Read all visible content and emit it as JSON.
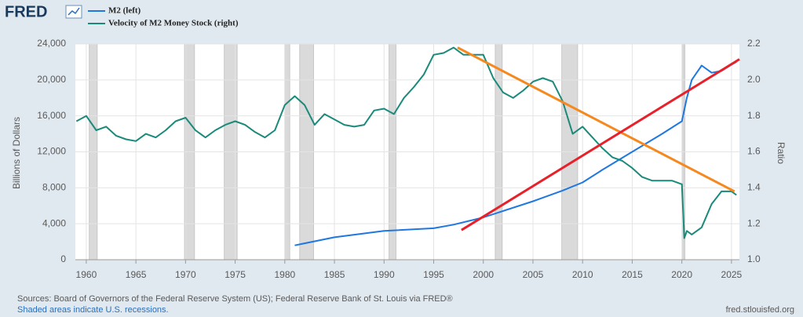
{
  "logo": "FRED",
  "chart_data": {
    "type": "line",
    "y_label": "Billions of Dollars",
    "y2_label": "Ratio",
    "xlim": [
      1958.9,
      2025.8
    ],
    "xticks": [
      1960,
      1965,
      1970,
      1975,
      1980,
      1985,
      1990,
      1995,
      2000,
      2005,
      2010,
      2015,
      2020,
      2025
    ],
    "ylim": [
      0,
      24000
    ],
    "yticks": [
      0,
      {
        "value": 4000,
        "label": "4,000"
      },
      {
        "value": 8000,
        "label": "8,000"
      },
      {
        "value": 12000,
        "label": "12,000"
      },
      {
        "value": 16000,
        "label": "16,000"
      },
      {
        "value": 20000,
        "label": "20,000"
      },
      {
        "value": 24000,
        "label": "24,000"
      }
    ],
    "y2lim": [
      1.0,
      2.2
    ],
    "y2ticks": [
      {
        "value": 1.0,
        "label": "1.0"
      },
      1.2,
      1.4,
      1.6,
      1.8,
      {
        "value": 2.0,
        "label": "2.0"
      },
      2.2
    ],
    "grid": true,
    "recessions": [
      [
        1960.3,
        1961.1
      ],
      [
        1969.9,
        1970.9
      ],
      [
        1973.9,
        1975.2
      ],
      [
        1980.0,
        1980.5
      ],
      [
        1981.5,
        1982.9
      ],
      [
        1990.5,
        1991.2
      ],
      [
        2001.2,
        2001.9
      ],
      [
        2007.9,
        2009.5
      ],
      [
        2020.1,
        2020.3
      ]
    ],
    "series": [
      {
        "name": "M2 (left)",
        "color": "#1f77e0",
        "axis": "y",
        "x": [
          1981,
          1985,
          1990,
          1995,
          1997,
          2000,
          2005,
          2008,
          2010,
          2012,
          2015,
          2018,
          2020.0,
          2020.5,
          2021,
          2022,
          2023,
          2024,
          2025,
          2025.5
        ],
        "values": [
          1600,
          2500,
          3200,
          3500,
          3900,
          4700,
          6500,
          7700,
          8600,
          10000,
          12000,
          14000,
          15400,
          18000,
          20000,
          21600,
          20800,
          21000,
          21700,
          22000
        ]
      },
      {
        "name": "Velocity of M2 Money Stock (right)",
        "color": "#1a8a7a",
        "axis": "y2",
        "x": [
          1959,
          1960,
          1961,
          1962,
          1963,
          1964,
          1965,
          1966,
          1967,
          1968,
          1969,
          1970,
          1971,
          1972,
          1973,
          1974,
          1975,
          1976,
          1977,
          1978,
          1979,
          1980,
          1981,
          1982,
          1983,
          1984,
          1985,
          1986,
          1987,
          1988,
          1989,
          1990,
          1991,
          1992,
          1993,
          1994,
          1995,
          1996,
          1997,
          1998,
          1999,
          2000,
          2001,
          2002,
          2003,
          2004,
          2005,
          2006,
          2007,
          2008,
          2009,
          2010,
          2011,
          2012,
          2013,
          2014,
          2015,
          2016,
          2017,
          2018,
          2019,
          2020.0,
          2020.25,
          2020.5,
          2021,
          2022,
          2023,
          2024,
          2025,
          2025.5
        ],
        "values": [
          1.77,
          1.8,
          1.72,
          1.74,
          1.69,
          1.67,
          1.66,
          1.7,
          1.68,
          1.72,
          1.77,
          1.79,
          1.72,
          1.68,
          1.72,
          1.75,
          1.77,
          1.75,
          1.71,
          1.68,
          1.72,
          1.86,
          1.91,
          1.86,
          1.75,
          1.81,
          1.78,
          1.75,
          1.74,
          1.75,
          1.83,
          1.84,
          1.81,
          1.9,
          1.96,
          2.03,
          2.14,
          2.15,
          2.18,
          2.14,
          2.14,
          2.14,
          2.01,
          1.93,
          1.9,
          1.94,
          1.99,
          2.01,
          1.99,
          1.88,
          1.7,
          1.74,
          1.68,
          1.62,
          1.57,
          1.55,
          1.51,
          1.46,
          1.44,
          1.44,
          1.44,
          1.42,
          1.12,
          1.16,
          1.14,
          1.18,
          1.31,
          1.38,
          1.38,
          1.36
        ]
      }
    ],
    "trend_lines": [
      {
        "color": "#f5891f",
        "axis": "y2",
        "x": [
          1997.4,
          2025.3
        ],
        "values": [
          2.18,
          1.38
        ]
      },
      {
        "color": "#e8202a",
        "axis": "y",
        "x": [
          1997.8,
          2025.8
        ],
        "values": [
          3300,
          22300
        ]
      }
    ]
  },
  "footer": {
    "sources": "Sources: Board of Governors of the Federal Reserve System (US); Federal Reserve Bank of St. Louis via FRED®",
    "recession_note": "Shaded areas indicate U.S. recessions.",
    "site": "fred.stlouisfed.org"
  }
}
